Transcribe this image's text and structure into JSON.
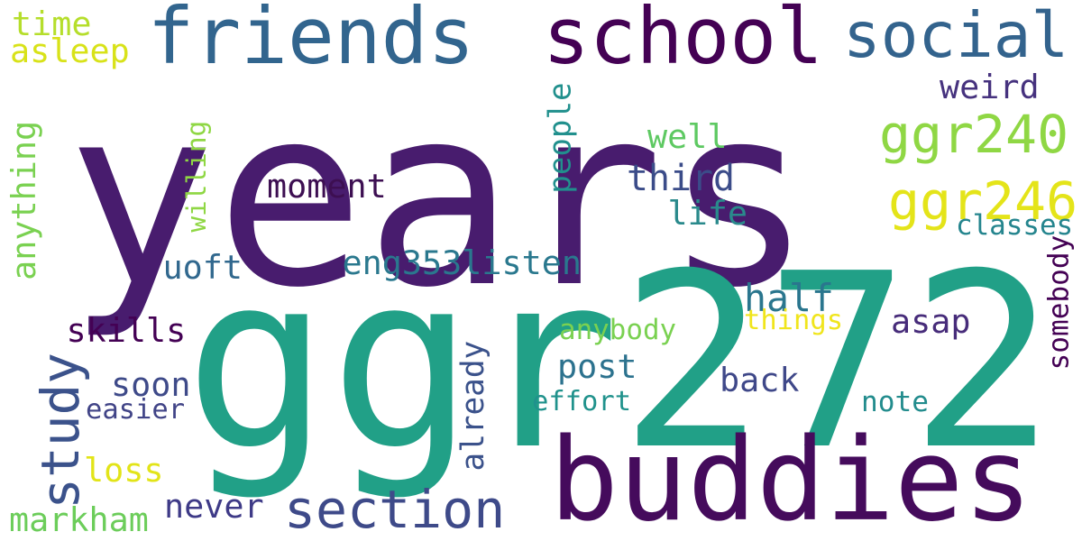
{
  "words": [
    {
      "text": "years",
      "color": "#481c6e",
      "orientation": "horizontal"
    },
    {
      "text": "ggr272",
      "color": "#21a087",
      "orientation": "horizontal"
    },
    {
      "text": "buddies",
      "color": "#450b5c",
      "orientation": "horizontal"
    },
    {
      "text": "friends",
      "color": "#32658e",
      "orientation": "horizontal"
    },
    {
      "text": "school",
      "color": "#440154",
      "orientation": "horizontal"
    },
    {
      "text": "social",
      "color": "#33638d",
      "orientation": "horizontal"
    },
    {
      "text": "ggr240",
      "color": "#8fd744",
      "orientation": "horizontal"
    },
    {
      "text": "ggr246",
      "color": "#e4e419",
      "orientation": "horizontal"
    },
    {
      "text": "section",
      "color": "#3e4a89",
      "orientation": "horizontal"
    },
    {
      "text": "study",
      "color": "#3b528b",
      "orientation": "vertical"
    },
    {
      "text": "eng353listen",
      "color": "#2a788e",
      "orientation": "horizontal"
    },
    {
      "text": "moment",
      "color": "#3d0f52",
      "orientation": "horizontal"
    },
    {
      "text": "third",
      "color": "#3b4c89",
      "orientation": "horizontal"
    },
    {
      "text": "people",
      "color": "#21908d",
      "orientation": "vertical"
    },
    {
      "text": "weird",
      "color": "#46327e",
      "orientation": "horizontal"
    },
    {
      "text": "well",
      "color": "#5ec962",
      "orientation": "horizontal"
    },
    {
      "text": "life",
      "color": "#2a8a8c",
      "orientation": "horizontal"
    },
    {
      "text": "uoft",
      "color": "#31688e",
      "orientation": "horizontal"
    },
    {
      "text": "half",
      "color": "#2a768e",
      "orientation": "horizontal"
    },
    {
      "text": "asap",
      "color": "#472c7a",
      "orientation": "horizontal"
    },
    {
      "text": "skills",
      "color": "#440154",
      "orientation": "horizontal"
    },
    {
      "text": "post",
      "color": "#2c728e",
      "orientation": "horizontal"
    },
    {
      "text": "back",
      "color": "#3f4889",
      "orientation": "horizontal"
    },
    {
      "text": "soon",
      "color": "#3e4a89",
      "orientation": "horizontal"
    },
    {
      "text": "already",
      "color": "#3b528b",
      "orientation": "vertical"
    },
    {
      "text": "anything",
      "color": "#7ad151",
      "orientation": "vertical"
    },
    {
      "text": "willing",
      "color": "#8fd744",
      "orientation": "vertical"
    },
    {
      "text": "time",
      "color": "#b5de2b",
      "orientation": "horizontal"
    },
    {
      "text": "asleep",
      "color": "#d8e219",
      "orientation": "horizontal"
    },
    {
      "text": "classes",
      "color": "#25858e",
      "orientation": "horizontal"
    },
    {
      "text": "somebody",
      "color": "#440154",
      "orientation": "vertical"
    },
    {
      "text": "things",
      "color": "#f0e51c",
      "orientation": "horizontal"
    },
    {
      "text": "anybody",
      "color": "#7ad151",
      "orientation": "horizontal"
    },
    {
      "text": "effort",
      "color": "#20928c",
      "orientation": "horizontal"
    },
    {
      "text": "note",
      "color": "#228c8d",
      "orientation": "horizontal"
    },
    {
      "text": "easier",
      "color": "#414487",
      "orientation": "horizontal"
    },
    {
      "text": "loss",
      "color": "#e2e418",
      "orientation": "horizontal"
    },
    {
      "text": "never",
      "color": "#3e3a87",
      "orientation": "horizontal"
    },
    {
      "text": "markham",
      "color": "#6ccd5a",
      "orientation": "horizontal"
    }
  ]
}
